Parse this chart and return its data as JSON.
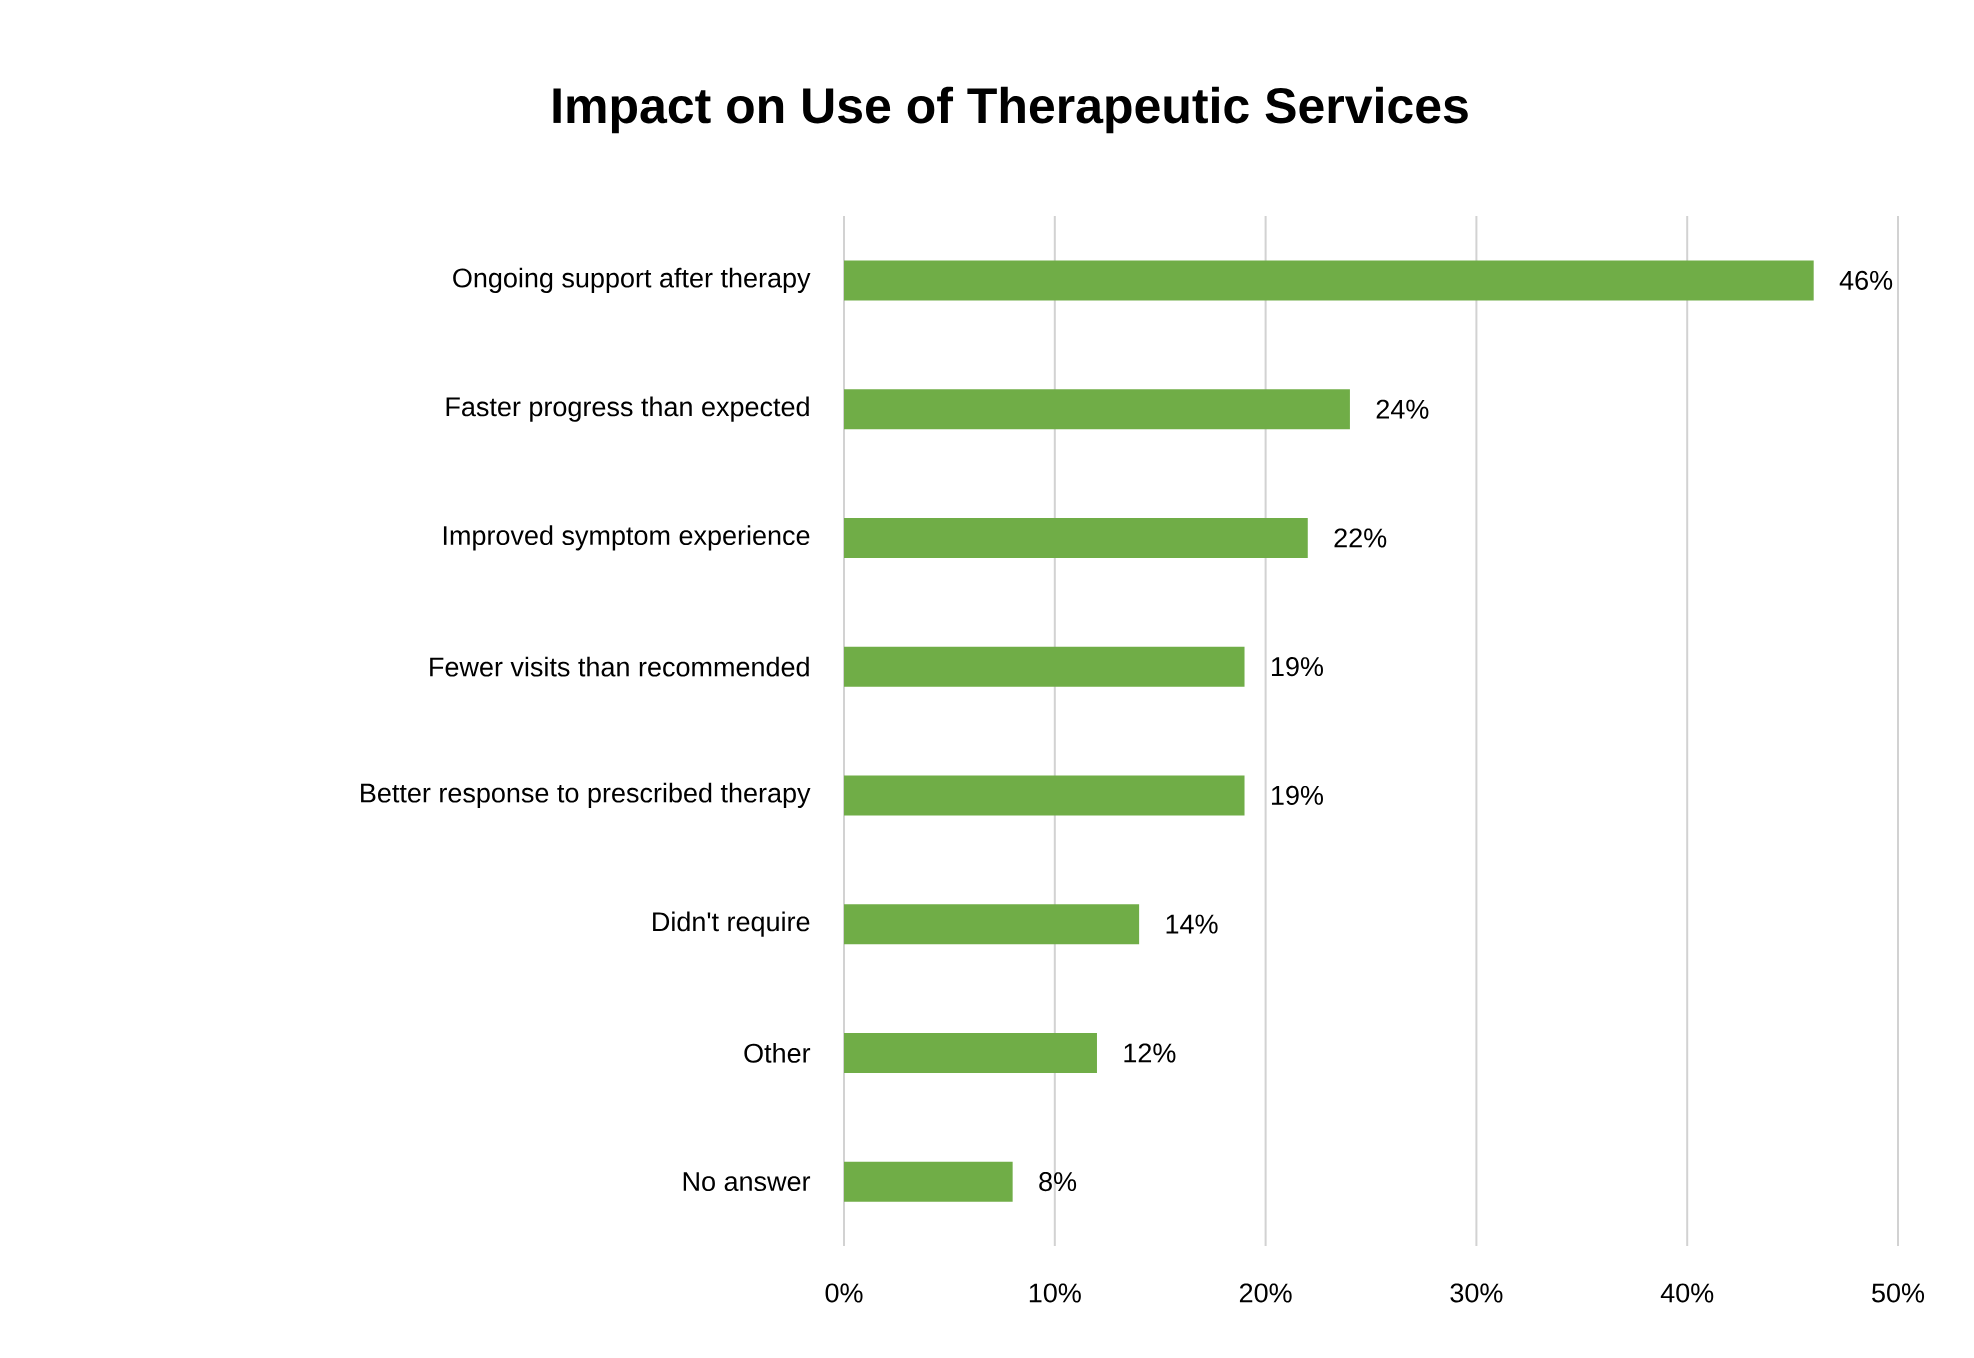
{
  "chart_data": {
    "type": "bar",
    "orientation": "horizontal",
    "title": "Impact on Use of Therapeutic Services",
    "categories": [
      "Ongoing support after therapy",
      "Faster progress than expected",
      "Improved symptom experience",
      "Fewer visits than recommended",
      "Better response to prescribed therapy",
      "Didn't require",
      "Other",
      "No answer"
    ],
    "values": [
      46,
      24,
      22,
      19,
      19,
      14,
      12,
      8
    ],
    "value_labels": [
      "46%",
      "24%",
      "22%",
      "19%",
      "19%",
      "14%",
      "12%",
      "8%"
    ],
    "color": "#70ad47",
    "xlim": [
      0,
      50
    ],
    "xticks": [
      {
        "value": 0,
        "label": "0%"
      },
      {
        "value": 10,
        "label": "10%"
      },
      {
        "value": 20,
        "label": "20%"
      },
      {
        "value": 30,
        "label": "30%"
      },
      {
        "value": 40,
        "label": "40%"
      },
      {
        "value": 50,
        "label": "50%"
      }
    ],
    "grid": "x"
  }
}
